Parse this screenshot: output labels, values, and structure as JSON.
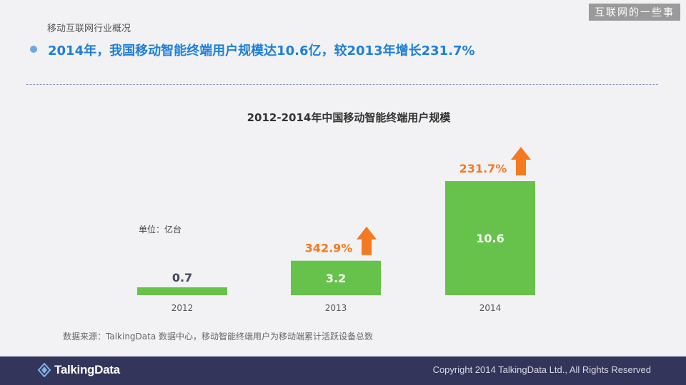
{
  "badge": "互联网的一些事",
  "section_label": "移动互联网行业概况",
  "headline": "2014年，我国移动智能终端用户规模达10.6亿，较2013年增长231.7%",
  "chart_data": {
    "type": "bar",
    "title": "2012-2014年中国移动智能终端用户规模",
    "unit_label": "单位：亿台",
    "categories": [
      "2012",
      "2013",
      "2014"
    ],
    "values": [
      0.7,
      3.2,
      10.6
    ],
    "value_labels": [
      "0.7",
      "3.2",
      "10.6"
    ],
    "growth_labels": [
      "",
      "342.9%",
      "231.7%"
    ],
    "ylim": [
      0,
      10.6
    ],
    "grid": false,
    "colors": {
      "bar": "#66c24a",
      "growth": "#f47920",
      "value_dark": "#3e4a5c",
      "value_light": "#ffffff"
    }
  },
  "source_note": "数据来源：TalkingData 数据中心，移动智能终端用户为移动端累计活跃设备总数",
  "footer": {
    "logo_text": "TalkingData",
    "copyright": "Copyright 2014 TalkingData Ltd., All Rights Reserved"
  }
}
